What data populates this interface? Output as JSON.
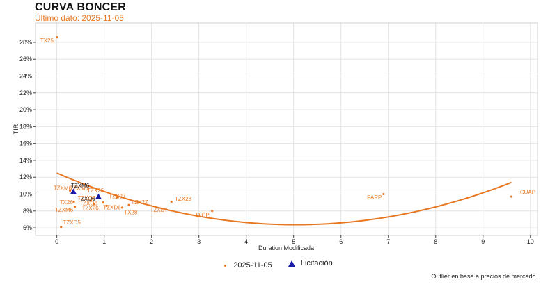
{
  "header": {
    "title": "CURVA BONCER",
    "subtitle": "Último dato: 2025-11-05"
  },
  "footnote": "Outlier en base a precios de mercado.",
  "colors": {
    "market": "#e87722",
    "auction": "#1a1aa8",
    "grid": "#e3e3e3",
    "axis": "#444444"
  },
  "chart_data": {
    "type": "scatter",
    "xlabel": "Duration Modificada",
    "ylabel": "TIR",
    "xlim": [
      -0.45,
      10.15
    ],
    "ylim": [
      5.1,
      30.3
    ],
    "xticks": [
      0,
      1,
      2,
      3,
      4,
      5,
      6,
      7,
      8,
      9,
      10
    ],
    "yticks": [
      6,
      8,
      10,
      12,
      14,
      16,
      18,
      20,
      22,
      24,
      26,
      28
    ],
    "ytick_suffix": "%",
    "grid": true,
    "legend_position": "bottom",
    "series": [
      {
        "name": "2025-11-05",
        "marker": "dot",
        "points": [
          {
            "label": "TX25",
            "x": 0.0,
            "y": 28.6
          },
          {
            "label": "TZXD5",
            "x": 0.09,
            "y": 6.1
          },
          {
            "label": "TZXM6",
            "x": 0.28,
            "y": 10.4
          },
          {
            "label": "TX26",
            "x": 0.36,
            "y": 9.1
          },
          {
            "label": "TZXM6",
            "x": 0.38,
            "y": 8.5
          },
          {
            "label": "TZXO6",
            "x": 0.72,
            "y": 9.2
          },
          {
            "label": "TX26",
            "x": 0.78,
            "y": 8.8
          },
          {
            "label": "TZX26",
            "x": 0.98,
            "y": 9.0
          },
          {
            "label": "TZXD6",
            "x": 1.05,
            "y": 8.6
          },
          {
            "label": "TZX27",
            "x": 1.27,
            "y": 9.6
          },
          {
            "label": "TX28",
            "x": 1.38,
            "y": 8.4
          },
          {
            "label": "TZXD7",
            "x": 1.52,
            "y": 8.7
          },
          {
            "label": "TZX28",
            "x": 2.42,
            "y": 9.1
          },
          {
            "label": "DICP",
            "x": 3.28,
            "y": 8.0
          },
          {
            "label": "PARP",
            "x": 6.9,
            "y": 10.0
          },
          {
            "label": "CUAP",
            "x": 9.6,
            "y": 9.7
          }
        ]
      },
      {
        "name": "Licitación",
        "marker": "triangle",
        "points": [
          {
            "label": "TZXM6",
            "x": 0.35,
            "y": 10.3
          },
          {
            "label": "TZXO6",
            "x": 0.88,
            "y": 9.7
          }
        ]
      }
    ],
    "fit_curve": {
      "x_range": [
        0.0,
        9.6
      ],
      "coefficients": [
        12.5,
        -2.43,
        0.241
      ]
    },
    "point_labels": [
      {
        "text": "TX25",
        "x": -0.35,
        "y": 28.0
      },
      {
        "text": "TZXM6",
        "x": -0.07,
        "y": 10.5
      },
      {
        "text": "TZXM6",
        "x": 0.28,
        "y": 10.5
      },
      {
        "text": "TZX26",
        "x": 0.64,
        "y": 10.2
      },
      {
        "text": "TZXO6",
        "x": 0.44,
        "y": 9.3
      },
      {
        "text": "TZXO6",
        "x": 0.48,
        "y": 8.7
      },
      {
        "text": "TX26",
        "x": 0.06,
        "y": 8.8
      },
      {
        "text": "TZXM6",
        "x": -0.04,
        "y": 7.9
      },
      {
        "text": "TZX26",
        "x": 0.53,
        "y": 8.1
      },
      {
        "text": "TZXD6",
        "x": 0.98,
        "y": 8.2
      },
      {
        "text": "TZX27",
        "x": 1.1,
        "y": 9.5
      },
      {
        "text": "TZX27",
        "x": 1.57,
        "y": 8.8
      },
      {
        "text": "TX28",
        "x": 1.42,
        "y": 7.6
      },
      {
        "text": "TZXD7",
        "x": 1.97,
        "y": 7.9
      },
      {
        "text": "TZX28",
        "x": 2.49,
        "y": 9.2
      },
      {
        "text": "DICP",
        "x": 2.94,
        "y": 7.3
      },
      {
        "text": "PARP",
        "x": 6.55,
        "y": 9.4
      },
      {
        "text": "CUAP",
        "x": 9.78,
        "y": 10.0
      },
      {
        "text": "TZXD5",
        "x": 0.13,
        "y": 6.4
      }
    ]
  }
}
